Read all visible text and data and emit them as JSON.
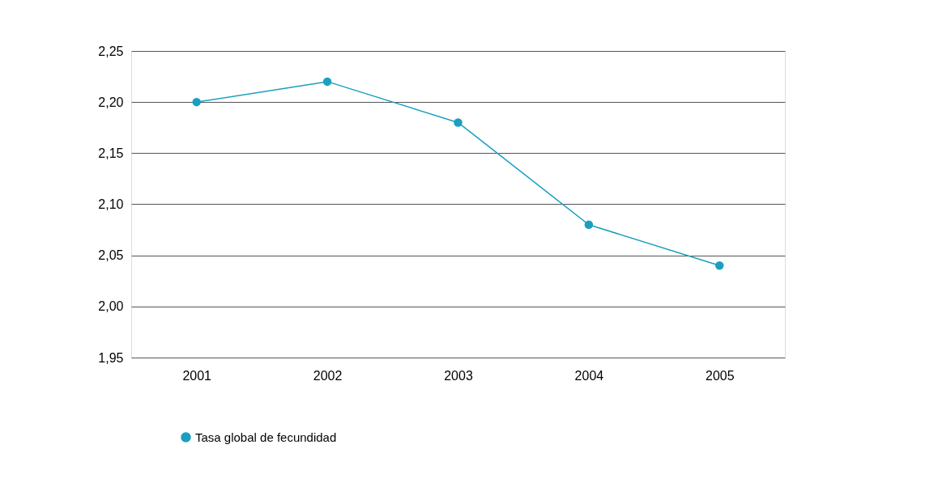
{
  "chart_data": {
    "type": "line",
    "categories": [
      "2001",
      "2002",
      "2003",
      "2004",
      "2005"
    ],
    "series": [
      {
        "name": "Tasa global de fecundidad",
        "color": "#1a9fc0",
        "values": [
          2.2,
          2.22,
          2.18,
          2.08,
          2.04
        ]
      }
    ],
    "ylim": [
      1.95,
      2.25
    ],
    "yticks": [
      {
        "value": 1.95,
        "label": "1,95"
      },
      {
        "value": 2.0,
        "label": "2,00"
      },
      {
        "value": 2.05,
        "label": "2,05"
      },
      {
        "value": 2.1,
        "label": "2,10"
      },
      {
        "value": 2.15,
        "label": "2,15"
      },
      {
        "value": 2.2,
        "label": "2,20"
      },
      {
        "value": 2.25,
        "label": "2,25"
      }
    ],
    "grid": "y",
    "legend": "bottom left",
    "marker": "circle",
    "line_style": "solid"
  }
}
